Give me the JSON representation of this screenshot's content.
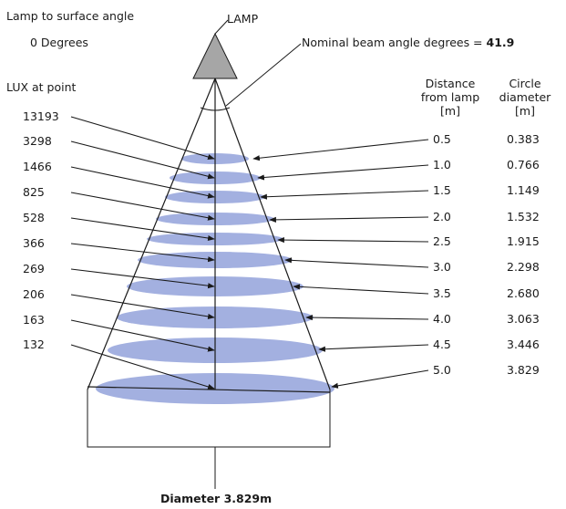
{
  "labels": {
    "surface_angle_title": "Lamp to surface angle",
    "surface_angle_value": "0 Degrees",
    "lamp": "LAMP",
    "beam_angle_text": "Nominal beam angle degrees =",
    "beam_angle_value": "41.9",
    "lux_header": "LUX at point",
    "distance_header_1": "Distance",
    "distance_header_2": "from lamp",
    "distance_header_3": "[m]",
    "diameter_header_1": "Circle",
    "diameter_header_2": "diameter",
    "diameter_header_3": "[m]",
    "footer": "Diameter 3.829m"
  },
  "rows": [
    {
      "lux": "13193",
      "distance": "0.5",
      "diameter": "0.383"
    },
    {
      "lux": "3298",
      "distance": "1.0",
      "diameter": "0.766"
    },
    {
      "lux": "1466",
      "distance": "1.5",
      "diameter": "1.149"
    },
    {
      "lux": "825",
      "distance": "2.0",
      "diameter": "1.532"
    },
    {
      "lux": "528",
      "distance": "2.5",
      "diameter": "1.915"
    },
    {
      "lux": "366",
      "distance": "3.0",
      "diameter": "2.298"
    },
    {
      "lux": "269",
      "distance": "3.5",
      "diameter": "2.680"
    },
    {
      "lux": "206",
      "distance": "4.0",
      "diameter": "3.063"
    },
    {
      "lux": "163",
      "distance": "4.5",
      "diameter": "3.446"
    },
    {
      "lux": "132",
      "distance": "5.0",
      "diameter": "3.829"
    }
  ],
  "colors": {
    "ellipse_fill": "#a3b0e0",
    "line": "#1a1a1a",
    "lamp_fill": "#a6a6a6"
  }
}
